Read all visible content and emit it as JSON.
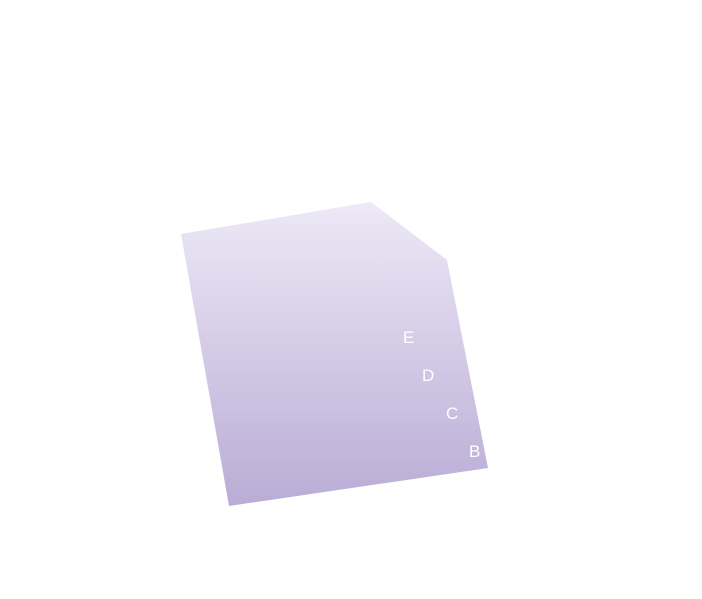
{
  "card": {
    "gradient_top_color": "#ede9f6",
    "gradient_bottom_color": "#b9acd6",
    "label_color": "#ffffff"
  },
  "labels": [
    {
      "text": "E"
    },
    {
      "text": "D"
    },
    {
      "text": "C"
    },
    {
      "text": "B"
    }
  ]
}
